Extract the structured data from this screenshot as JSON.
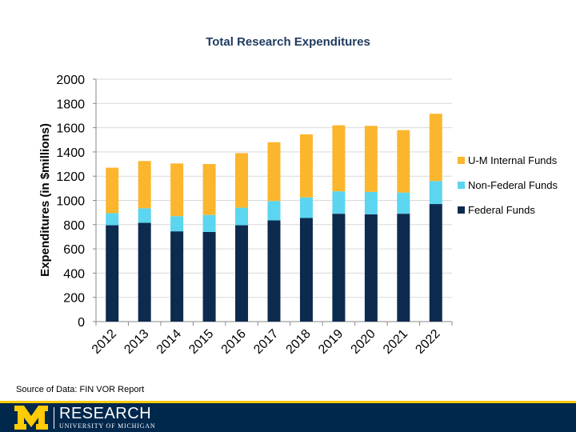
{
  "chart_data": {
    "type": "bar",
    "stacked": true,
    "title": "Total Research Expenditures",
    "xlabel": "",
    "ylabel": "Expenditures (in $millions)",
    "ylim": [
      0,
      2000
    ],
    "yticks": [
      "0",
      "200",
      "400",
      "600",
      "800",
      "1000",
      "1200",
      "1400",
      "1600",
      "1800",
      "2000"
    ],
    "categories": [
      "2012",
      "2013",
      "2014",
      "2015",
      "2016",
      "2017",
      "2018",
      "2019",
      "2020",
      "2021",
      "2022"
    ],
    "series": [
      {
        "name": "Federal Funds",
        "color": "#0d2b4e",
        "values": [
          795,
          815,
          745,
          740,
          795,
          835,
          855,
          890,
          885,
          890,
          970
        ]
      },
      {
        "name": "Non-Federal Funds",
        "color": "#5bd5f0",
        "values": [
          100,
          120,
          125,
          140,
          145,
          160,
          170,
          185,
          185,
          175,
          190
        ]
      },
      {
        "name": "U-M Internal Funds",
        "color": "#fbb62e",
        "values": [
          375,
          390,
          435,
          420,
          450,
          485,
          520,
          545,
          545,
          515,
          555
        ]
      }
    ],
    "legend_order": [
      "U-M Internal Funds",
      "Non-Federal Funds",
      "Federal Funds"
    ],
    "legend_position": "right",
    "grid": true
  },
  "source_note": "Source of Data: FIN VOR Report",
  "branding": {
    "name": "RESEARCH",
    "subtitle": "UNIVERSITY OF MICHIGAN",
    "logo": "block-m-logo",
    "navy": "#00274c",
    "maize": "#ffcb05"
  }
}
